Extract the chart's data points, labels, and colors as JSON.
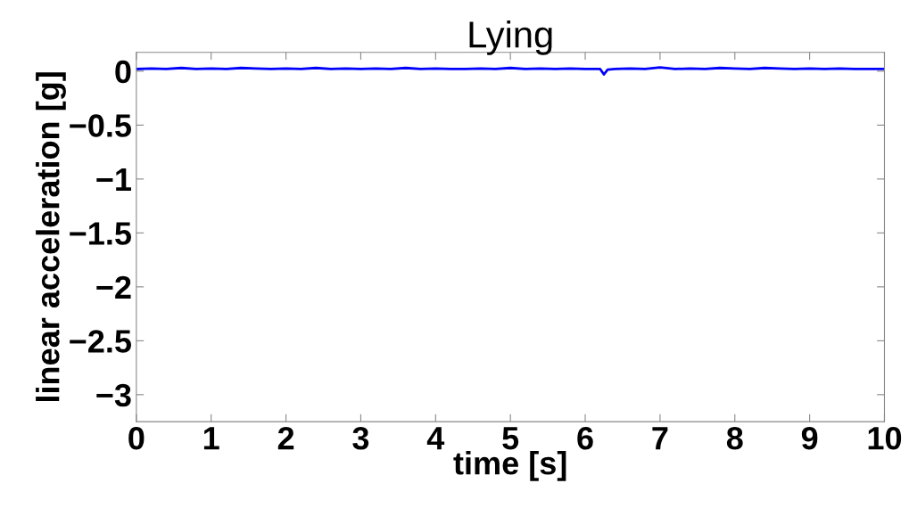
{
  "chart_data": {
    "type": "line",
    "title": "Lying",
    "xlabel": "time [s]",
    "ylabel": "linear acceleration [g]",
    "x": [
      0,
      0.2,
      0.4,
      0.6,
      0.8,
      1.0,
      1.2,
      1.4,
      1.6,
      1.8,
      2.0,
      2.2,
      2.4,
      2.6,
      2.8,
      3.0,
      3.2,
      3.4,
      3.6,
      3.8,
      4.0,
      4.2,
      4.4,
      4.6,
      4.8,
      5.0,
      5.2,
      5.4,
      5.6,
      5.8,
      6.0,
      6.2,
      6.25,
      6.3,
      6.4,
      6.6,
      6.8,
      7.0,
      7.2,
      7.4,
      7.6,
      7.8,
      8.0,
      8.2,
      8.4,
      8.6,
      8.8,
      9.0,
      9.2,
      9.4,
      9.6,
      9.8,
      10.0
    ],
    "series": [
      {
        "color": "#0000ff",
        "values": [
          0.02,
          0.025,
          0.02,
          0.03,
          0.02,
          0.025,
          0.02,
          0.03,
          0.025,
          0.02,
          0.025,
          0.02,
          0.03,
          0.02,
          0.025,
          0.02,
          0.025,
          0.02,
          0.03,
          0.02,
          0.025,
          0.02,
          0.02,
          0.025,
          0.02,
          0.03,
          0.02,
          0.025,
          0.02,
          0.025,
          0.02,
          0.02,
          -0.03,
          0.015,
          0.02,
          0.025,
          0.02,
          0.035,
          0.02,
          0.025,
          0.02,
          0.03,
          0.025,
          0.02,
          0.03,
          0.025,
          0.02,
          0.025,
          0.02,
          0.025,
          0.02,
          0.02,
          0.02
        ]
      }
    ],
    "xlim": [
      0,
      10
    ],
    "ylim": [
      -3.25,
      0.175
    ],
    "xticks": [
      0,
      1,
      2,
      3,
      4,
      5,
      6,
      7,
      8,
      9,
      10
    ],
    "yticks": [
      {
        "value": -3,
        "label": "−3"
      },
      {
        "value": -2.5,
        "label": "−2.5"
      },
      {
        "value": -2,
        "label": "−2"
      },
      {
        "value": -1.5,
        "label": "−1.5"
      },
      {
        "value": -1,
        "label": "−1"
      },
      {
        "value": -0.5,
        "label": "−0.5"
      },
      0
    ],
    "grid": false,
    "line_style": "solid",
    "marker": "none"
  }
}
